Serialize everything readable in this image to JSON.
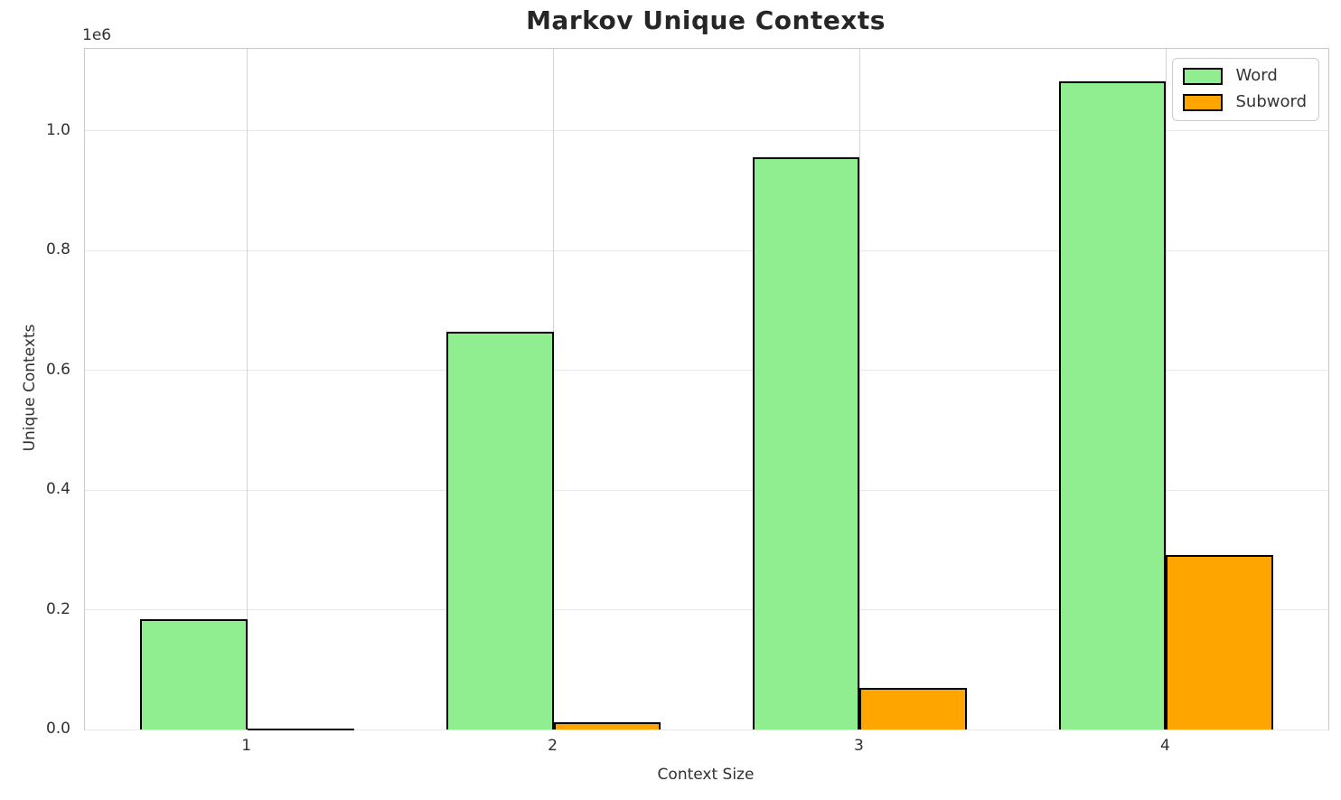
{
  "chart_data": {
    "type": "bar",
    "title": "Markov Unique Contexts",
    "xlabel": "Context Size",
    "ylabel": "Unique Contexts",
    "y_offset_label": "1e6",
    "categories": [
      "1",
      "2",
      "3",
      "4"
    ],
    "series": [
      {
        "name": "Word",
        "color": "#90EE90",
        "values": [
          184000,
          665000,
          956000,
          1083000
        ]
      },
      {
        "name": "Subword",
        "color": "#FFA500",
        "values": [
          2000,
          12000,
          70000,
          291000
        ]
      }
    ],
    "bar_edge_color": "#000000",
    "bar_width": 0.35,
    "xlim": [
      -0.53,
      3.53
    ],
    "ylim": [
      0,
      1137000
    ],
    "y_ticks": [
      0,
      200000,
      400000,
      600000,
      800000,
      1000000
    ],
    "y_tick_labels": [
      "0.0",
      "0.2",
      "0.4",
      "0.6",
      "0.8",
      "1.0"
    ],
    "grid": true,
    "legend_position": "upper right"
  }
}
